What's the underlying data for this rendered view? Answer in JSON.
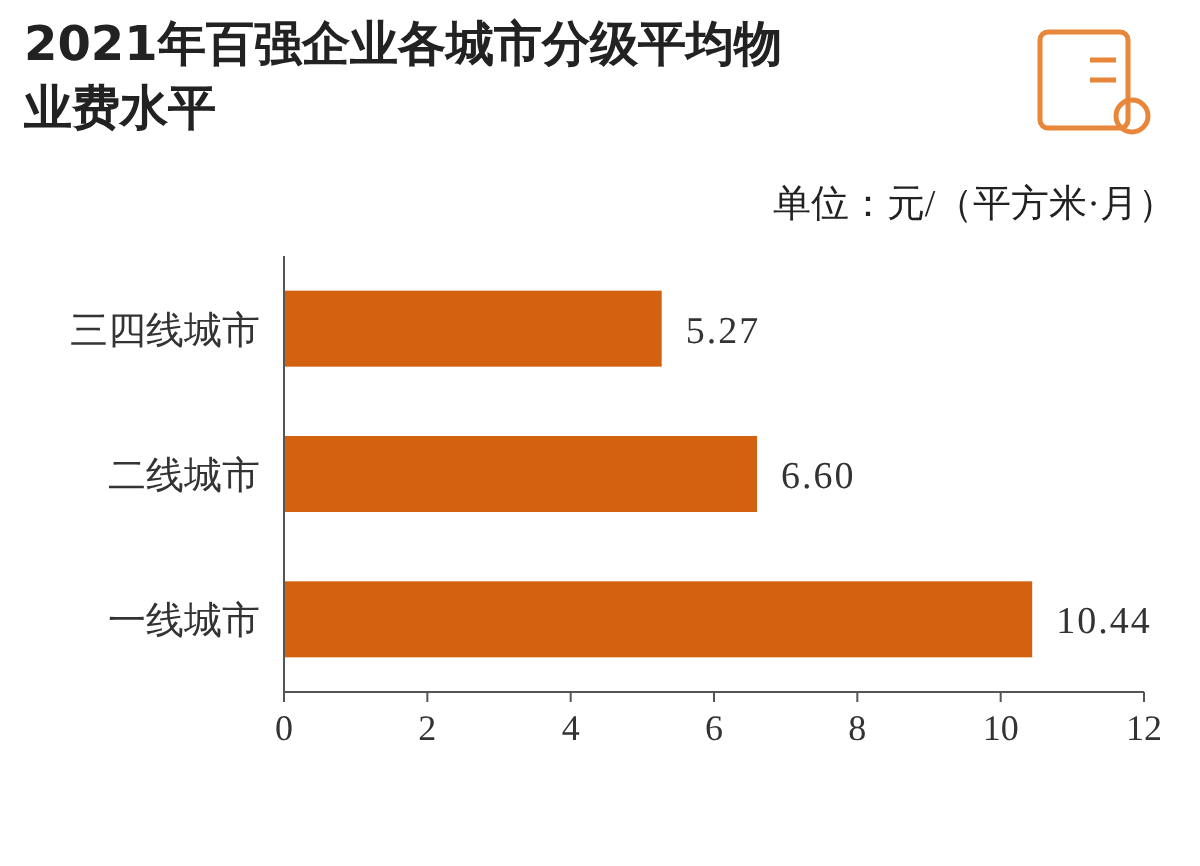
{
  "chart_data": {
    "type": "bar",
    "orientation": "horizontal",
    "title": "2021年百强企业各城市分级平均物业费水平",
    "annotations": [
      "单位：元/（平方米·月）"
    ],
    "categories": [
      "三四线城市",
      "二线城市",
      "一线城市"
    ],
    "values": [
      5.27,
      6.6,
      10.44
    ],
    "value_labels": [
      "5.27",
      "6.60",
      "10.44"
    ],
    "color": "#d4610f",
    "xlim": [
      0,
      12
    ],
    "xticks": [
      0,
      2,
      4,
      6,
      8,
      10,
      12
    ],
    "grid": false
  }
}
